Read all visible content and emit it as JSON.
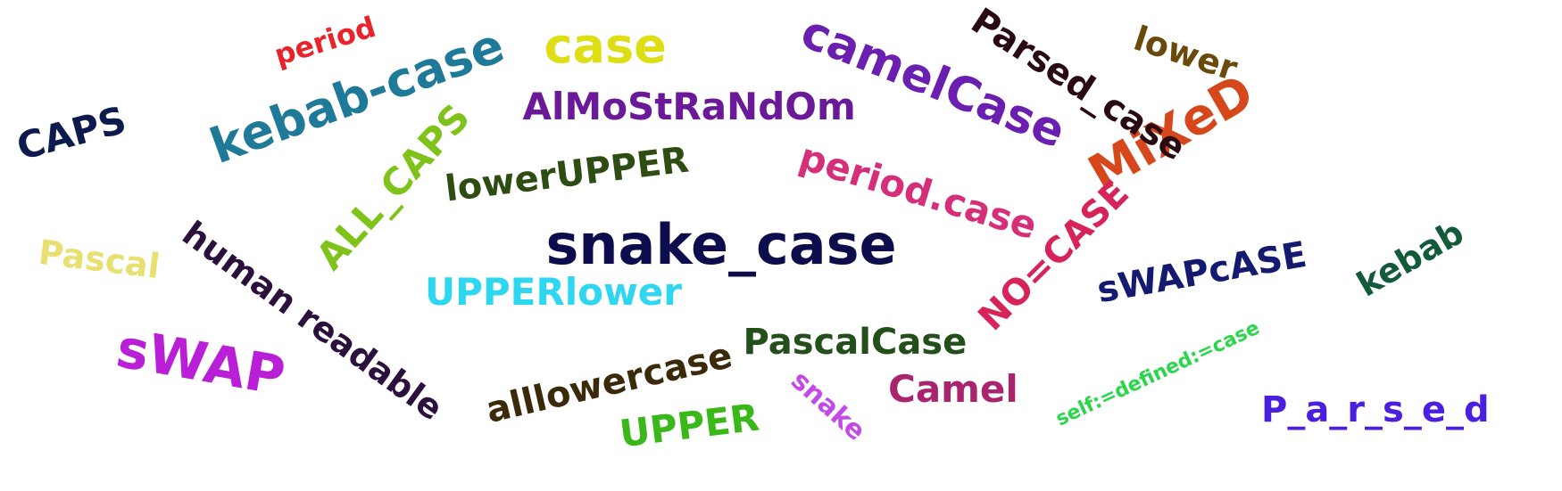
{
  "words": [
    {
      "text": "snake_case",
      "color": "#0d0d4d"
    },
    {
      "text": "kebab-case",
      "color": "#1f7a99"
    },
    {
      "text": "camelCase",
      "color": "#6a1fb0"
    },
    {
      "text": "sWAP",
      "color": "#b81fd6"
    },
    {
      "text": "MiXeD",
      "color": "#d6481c"
    },
    {
      "text": "human readable",
      "color": "#2b0f3d"
    },
    {
      "text": "Parsed_case",
      "color": "#2a0a12"
    },
    {
      "text": "AlMoStRaNdOm",
      "color": "#6a1a99"
    },
    {
      "text": "alllowercase",
      "color": "#3a2a0a"
    },
    {
      "text": "PascalCase",
      "color": "#23501a"
    },
    {
      "text": "period.case",
      "color": "#d62f7a"
    },
    {
      "text": "NO=CASE",
      "color": "#d6245a"
    },
    {
      "text": "lowerUPPER",
      "color": "#2e4d12"
    },
    {
      "text": "ALL_CAPS",
      "color": "#7ec21a"
    },
    {
      "text": "case",
      "color": "#dede14"
    },
    {
      "text": "UPPERlower",
      "color": "#2ed6f0"
    },
    {
      "text": "CAPS",
      "color": "#0d1a4d"
    },
    {
      "text": "sWAPcASE",
      "color": "#141a70"
    },
    {
      "text": "UPPER",
      "color": "#3ab81a"
    },
    {
      "text": "Camel",
      "color": "#a8246e"
    },
    {
      "text": "kebab",
      "color": "#125a3a"
    },
    {
      "text": "Pascal",
      "color": "#e8e070"
    },
    {
      "text": "P_a_r_s_e_d",
      "color": "#4a1fe0"
    },
    {
      "text": "lower",
      "color": "#6a4a0a"
    },
    {
      "text": "period",
      "color": "#e8242a"
    },
    {
      "text": "snake",
      "color": "#c24ae8"
    },
    {
      "text": "self:=defined:=case",
      "color": "#2ad64a"
    }
  ]
}
